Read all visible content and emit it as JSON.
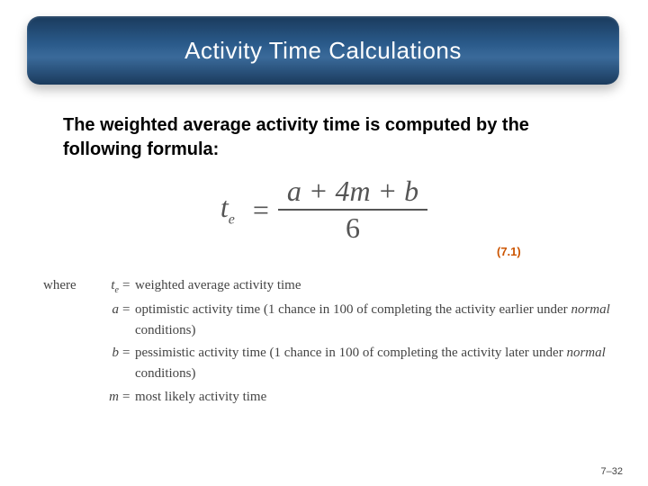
{
  "title": "Activity Time Calculations",
  "intro": "The weighted average activity time is computed by the following formula:",
  "formula": {
    "lhs_base": "t",
    "lhs_sub": "e",
    "numerator": "a + 4m + b",
    "denominator": "6",
    "text_color": "#555555"
  },
  "equation_number": "(7.1)",
  "equation_number_color": "#cc5500",
  "where_label": "where",
  "definitions": [
    {
      "symbol_base": "t",
      "symbol_sub": "e",
      "text_pre": "weighted average activity time",
      "italic": "",
      "text_post": ""
    },
    {
      "symbol_base": "a",
      "symbol_sub": "",
      "text_pre": "optimistic activity time (1 chance in 100 of completing the activity earlier under ",
      "italic": "normal",
      "text_post": " conditions)"
    },
    {
      "symbol_base": "b",
      "symbol_sub": "",
      "text_pre": "pessimistic activity time (1 chance in 100 of completing the activity later under ",
      "italic": "normal",
      "text_post": " conditions)"
    },
    {
      "symbol_base": "m",
      "symbol_sub": "",
      "text_pre": "most likely activity time",
      "italic": "",
      "text_post": ""
    }
  ],
  "page_number": "7–32",
  "colors": {
    "title_gradient_top": "#1a3a5c",
    "title_gradient_mid": "#3a6a9a",
    "title_text": "#ffffff",
    "body_text": "#000000",
    "def_text": "#444444",
    "background": "#ffffff"
  },
  "fonts": {
    "title_size_pt": 20,
    "intro_size_pt": 15,
    "formula_size_pt": 24,
    "def_size_pt": 11
  }
}
